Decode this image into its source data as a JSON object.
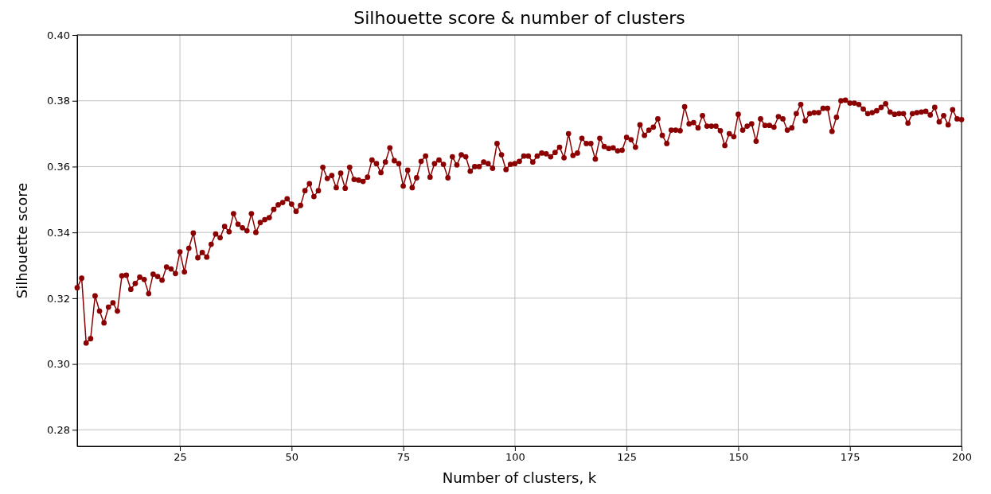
{
  "chart_data": {
    "type": "line",
    "title": "Silhouette score & number of clusters",
    "xlabel": "Number of clusters, k",
    "ylabel": "Silhouette score",
    "x": [
      2,
      3,
      4,
      5,
      6,
      7,
      8,
      9,
      10,
      11,
      12,
      13,
      14,
      15,
      16,
      17,
      18,
      19,
      20,
      21,
      22,
      23,
      24,
      25,
      26,
      27,
      28,
      29,
      30,
      31,
      32,
      33,
      34,
      35,
      36,
      37,
      38,
      39,
      40,
      41,
      42,
      43,
      44,
      45,
      46,
      47,
      48,
      49,
      50,
      51,
      52,
      53,
      54,
      55,
      56,
      57,
      58,
      59,
      60,
      61,
      62,
      63,
      64,
      65,
      66,
      67,
      68,
      69,
      70,
      71,
      72,
      73,
      74,
      75,
      76,
      77,
      78,
      79,
      80,
      81,
      82,
      83,
      84,
      85,
      86,
      87,
      88,
      89,
      90,
      91,
      92,
      93,
      94,
      95,
      96,
      97,
      98,
      99,
      100,
      101,
      102,
      103,
      104,
      105,
      106,
      107,
      108,
      109,
      110,
      111,
      112,
      113,
      114,
      115,
      116,
      117,
      118,
      119,
      120,
      121,
      122,
      123,
      124,
      125,
      126,
      127,
      128,
      129,
      130,
      131,
      132,
      133,
      134,
      135,
      136,
      137,
      138,
      139,
      140,
      141,
      142,
      143,
      144,
      145,
      146,
      147,
      148,
      149,
      150,
      151,
      152,
      153,
      154,
      155,
      156,
      157,
      158,
      159,
      160,
      161,
      162,
      163,
      164,
      165,
      166,
      167,
      168,
      169,
      170,
      171,
      172,
      173,
      174,
      175,
      176,
      177,
      178,
      179,
      180,
      181,
      182,
      183,
      184,
      185,
      186,
      187,
      188,
      189,
      190,
      191,
      192,
      193,
      194,
      195,
      196,
      197,
      198,
      199,
      200
    ],
    "series": [
      {
        "color": "#8b0000",
        "values": [
          0.3232,
          0.3261,
          0.3064,
          0.3077,
          0.3207,
          0.3161,
          0.3125,
          0.3173,
          0.3186,
          0.3161,
          0.3268,
          0.327,
          0.3227,
          0.3245,
          0.3264,
          0.3257,
          0.3214,
          0.3273,
          0.3266,
          0.3255,
          0.3295,
          0.3289,
          0.3275,
          0.3341,
          0.328,
          0.3352,
          0.3398,
          0.3323,
          0.3339,
          0.3325,
          0.3364,
          0.3395,
          0.3384,
          0.3418,
          0.3402,
          0.3457,
          0.3425,
          0.3414,
          0.3405,
          0.3457,
          0.34,
          0.343,
          0.3439,
          0.3445,
          0.347,
          0.3484,
          0.3491,
          0.3502,
          0.3486,
          0.3464,
          0.3482,
          0.3527,
          0.3548,
          0.3509,
          0.3527,
          0.3598,
          0.3564,
          0.3573,
          0.3536,
          0.358,
          0.3534,
          0.3598,
          0.3561,
          0.3559,
          0.3555,
          0.3568,
          0.362,
          0.3609,
          0.3582,
          0.3614,
          0.3657,
          0.3618,
          0.3609,
          0.3541,
          0.3589,
          0.3536,
          0.3566,
          0.3616,
          0.3632,
          0.3568,
          0.3609,
          0.362,
          0.3607,
          0.3566,
          0.363,
          0.3605,
          0.3636,
          0.363,
          0.3586,
          0.36,
          0.36,
          0.3614,
          0.3609,
          0.3595,
          0.367,
          0.3636,
          0.3591,
          0.3607,
          0.3609,
          0.3616,
          0.3632,
          0.3632,
          0.3614,
          0.3632,
          0.3641,
          0.3639,
          0.363,
          0.3643,
          0.3659,
          0.3627,
          0.37,
          0.3634,
          0.3641,
          0.3686,
          0.367,
          0.367,
          0.3623,
          0.3686,
          0.3661,
          0.3655,
          0.3657,
          0.3648,
          0.365,
          0.3689,
          0.3682,
          0.3659,
          0.3727,
          0.3695,
          0.3711,
          0.372,
          0.3745,
          0.3695,
          0.367,
          0.3711,
          0.3711,
          0.3709,
          0.3782,
          0.373,
          0.3734,
          0.3718,
          0.3755,
          0.3723,
          0.3723,
          0.3723,
          0.3709,
          0.3664,
          0.37,
          0.3691,
          0.3759,
          0.3711,
          0.3723,
          0.373,
          0.3677,
          0.3745,
          0.3725,
          0.3725,
          0.372,
          0.3752,
          0.3745,
          0.3711,
          0.3718,
          0.3761,
          0.3789,
          0.3739,
          0.3761,
          0.3764,
          0.3764,
          0.3777,
          0.3777,
          0.3707,
          0.375,
          0.38,
          0.3802,
          0.3793,
          0.3793,
          0.3789,
          0.3775,
          0.3761,
          0.3764,
          0.377,
          0.378,
          0.3791,
          0.3766,
          0.3759,
          0.3761,
          0.3761,
          0.3732,
          0.3761,
          0.3764,
          0.3766,
          0.3768,
          0.3757,
          0.378,
          0.3736,
          0.3755,
          0.3727,
          0.3773,
          0.3745,
          0.3743
        ]
      }
    ],
    "xlim": [
      2,
      200
    ],
    "xticks": [
      25,
      50,
      75,
      100,
      125,
      150,
      175,
      200
    ],
    "ylim": [
      0.275,
      0.4
    ],
    "yticks": [
      {
        "value": 0.28,
        "label": "0.28"
      },
      {
        "value": 0.3,
        "label": "0.30"
      },
      {
        "value": 0.32,
        "label": "0.32"
      },
      {
        "value": 0.34,
        "label": "0.34"
      },
      {
        "value": 0.36,
        "label": "0.36"
      },
      {
        "value": 0.38,
        "label": "0.38"
      },
      {
        "value": 0.4,
        "label": "0.40"
      }
    ],
    "grid": true,
    "marker": "circle",
    "line_style": "solid"
  }
}
